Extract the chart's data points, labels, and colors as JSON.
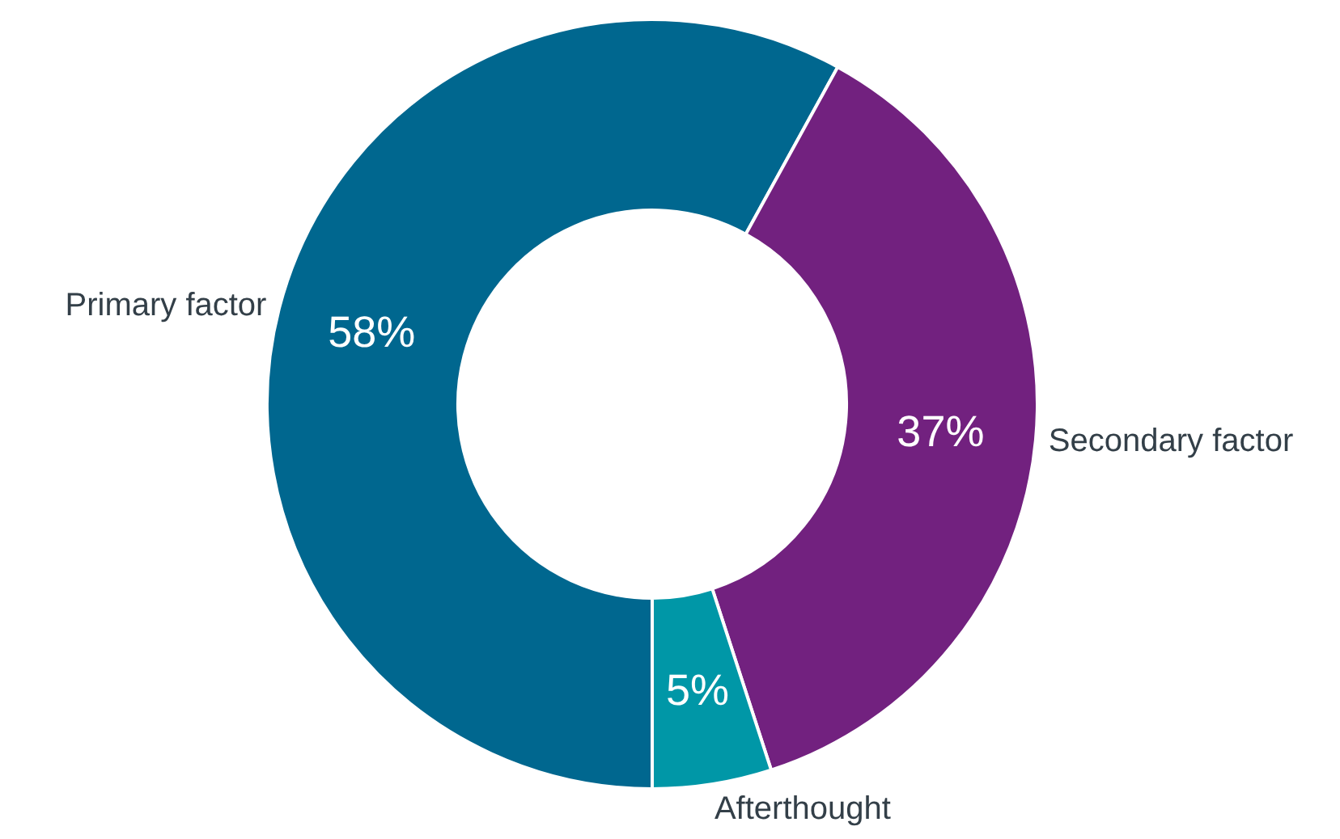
{
  "chart_data": {
    "type": "donut",
    "categories": [
      "Primary factor",
      "Secondary factor",
      "Afterthought"
    ],
    "values": [
      58,
      37,
      5
    ],
    "value_labels": [
      "58%",
      "37%",
      "5%"
    ],
    "colors": [
      "#00678f",
      "#72217f",
      "#0097a7"
    ]
  }
}
